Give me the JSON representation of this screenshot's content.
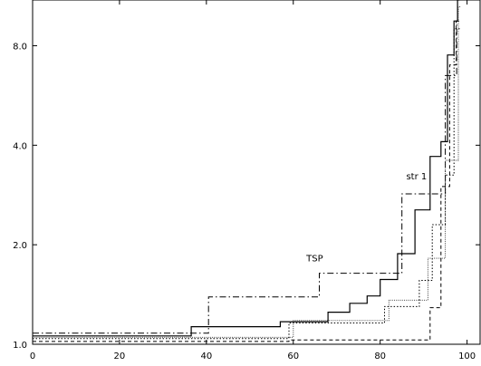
{
  "chart_data": {
    "type": "line",
    "step": true,
    "title": "",
    "xlabel": "",
    "ylabel": "",
    "x_ticks": [
      0,
      20,
      40,
      60,
      80,
      100
    ],
    "y_ticks": [
      1.0,
      2.0,
      4.0,
      8.0
    ],
    "y_tick_labels": [
      "1.0",
      "2.0",
      "4.0",
      "8.0"
    ],
    "y_scale": "log2",
    "xlim": [
      0,
      103
    ],
    "ylim": [
      1.0,
      11.0
    ],
    "grid": false,
    "annotations": [
      {
        "text": "TSP",
        "x": 63,
        "y": 1.78
      },
      {
        "text": "str 1",
        "x": 86,
        "y": 3.15
      }
    ],
    "series": [
      {
        "style": "solid",
        "x": [
          0,
          36.5,
          36.5,
          57,
          57,
          68,
          68,
          73,
          73,
          77,
          77,
          80,
          80,
          84,
          84,
          88,
          88,
          91.5,
          91.5,
          94,
          94,
          95.5,
          95.5,
          97,
          97,
          97.8,
          97.8,
          98.3
        ],
        "y": [
          1.06,
          1.06,
          1.13,
          1.13,
          1.17,
          1.17,
          1.25,
          1.25,
          1.33,
          1.33,
          1.4,
          1.4,
          1.57,
          1.57,
          1.88,
          1.88,
          2.55,
          2.55,
          3.7,
          3.7,
          4.1,
          4.1,
          7.5,
          7.5,
          9.5,
          9.5,
          11.0,
          11.0
        ]
      },
      {
        "style": "dashdot",
        "x": [
          0,
          40.5,
          40.5,
          66,
          66,
          85,
          85,
          95,
          95,
          97.6,
          97.6,
          98.2
        ],
        "y": [
          1.08,
          1.08,
          1.39,
          1.39,
          1.64,
          1.64,
          2.85,
          2.85,
          6.5,
          6.5,
          9.5,
          9.5
        ]
      },
      {
        "style": "dashed",
        "x": [
          0,
          59,
          59,
          91.5,
          91.5,
          94,
          94,
          96,
          96,
          97.5,
          97.5,
          98.3
        ],
        "y": [
          1.02,
          1.02,
          1.03,
          1.03,
          1.29,
          1.29,
          3.0,
          3.0,
          7.0,
          7.0,
          9.5,
          9.5
        ]
      },
      {
        "style": "dotted",
        "x": [
          0,
          59,
          59,
          81,
          81,
          89,
          89,
          92,
          92,
          95,
          95,
          97,
          97,
          98.5
        ],
        "y": [
          1.04,
          1.04,
          1.16,
          1.16,
          1.3,
          1.3,
          1.56,
          1.56,
          2.3,
          2.3,
          3.25,
          3.25,
          9.0,
          9.0
        ]
      },
      {
        "style": "densedot",
        "x": [
          0,
          60,
          60,
          82,
          82,
          91,
          91,
          95,
          95,
          98,
          98,
          98.6
        ],
        "y": [
          1.05,
          1.05,
          1.18,
          1.18,
          1.36,
          1.36,
          1.82,
          1.82,
          3.6,
          3.6,
          10.5,
          10.5
        ]
      }
    ]
  }
}
